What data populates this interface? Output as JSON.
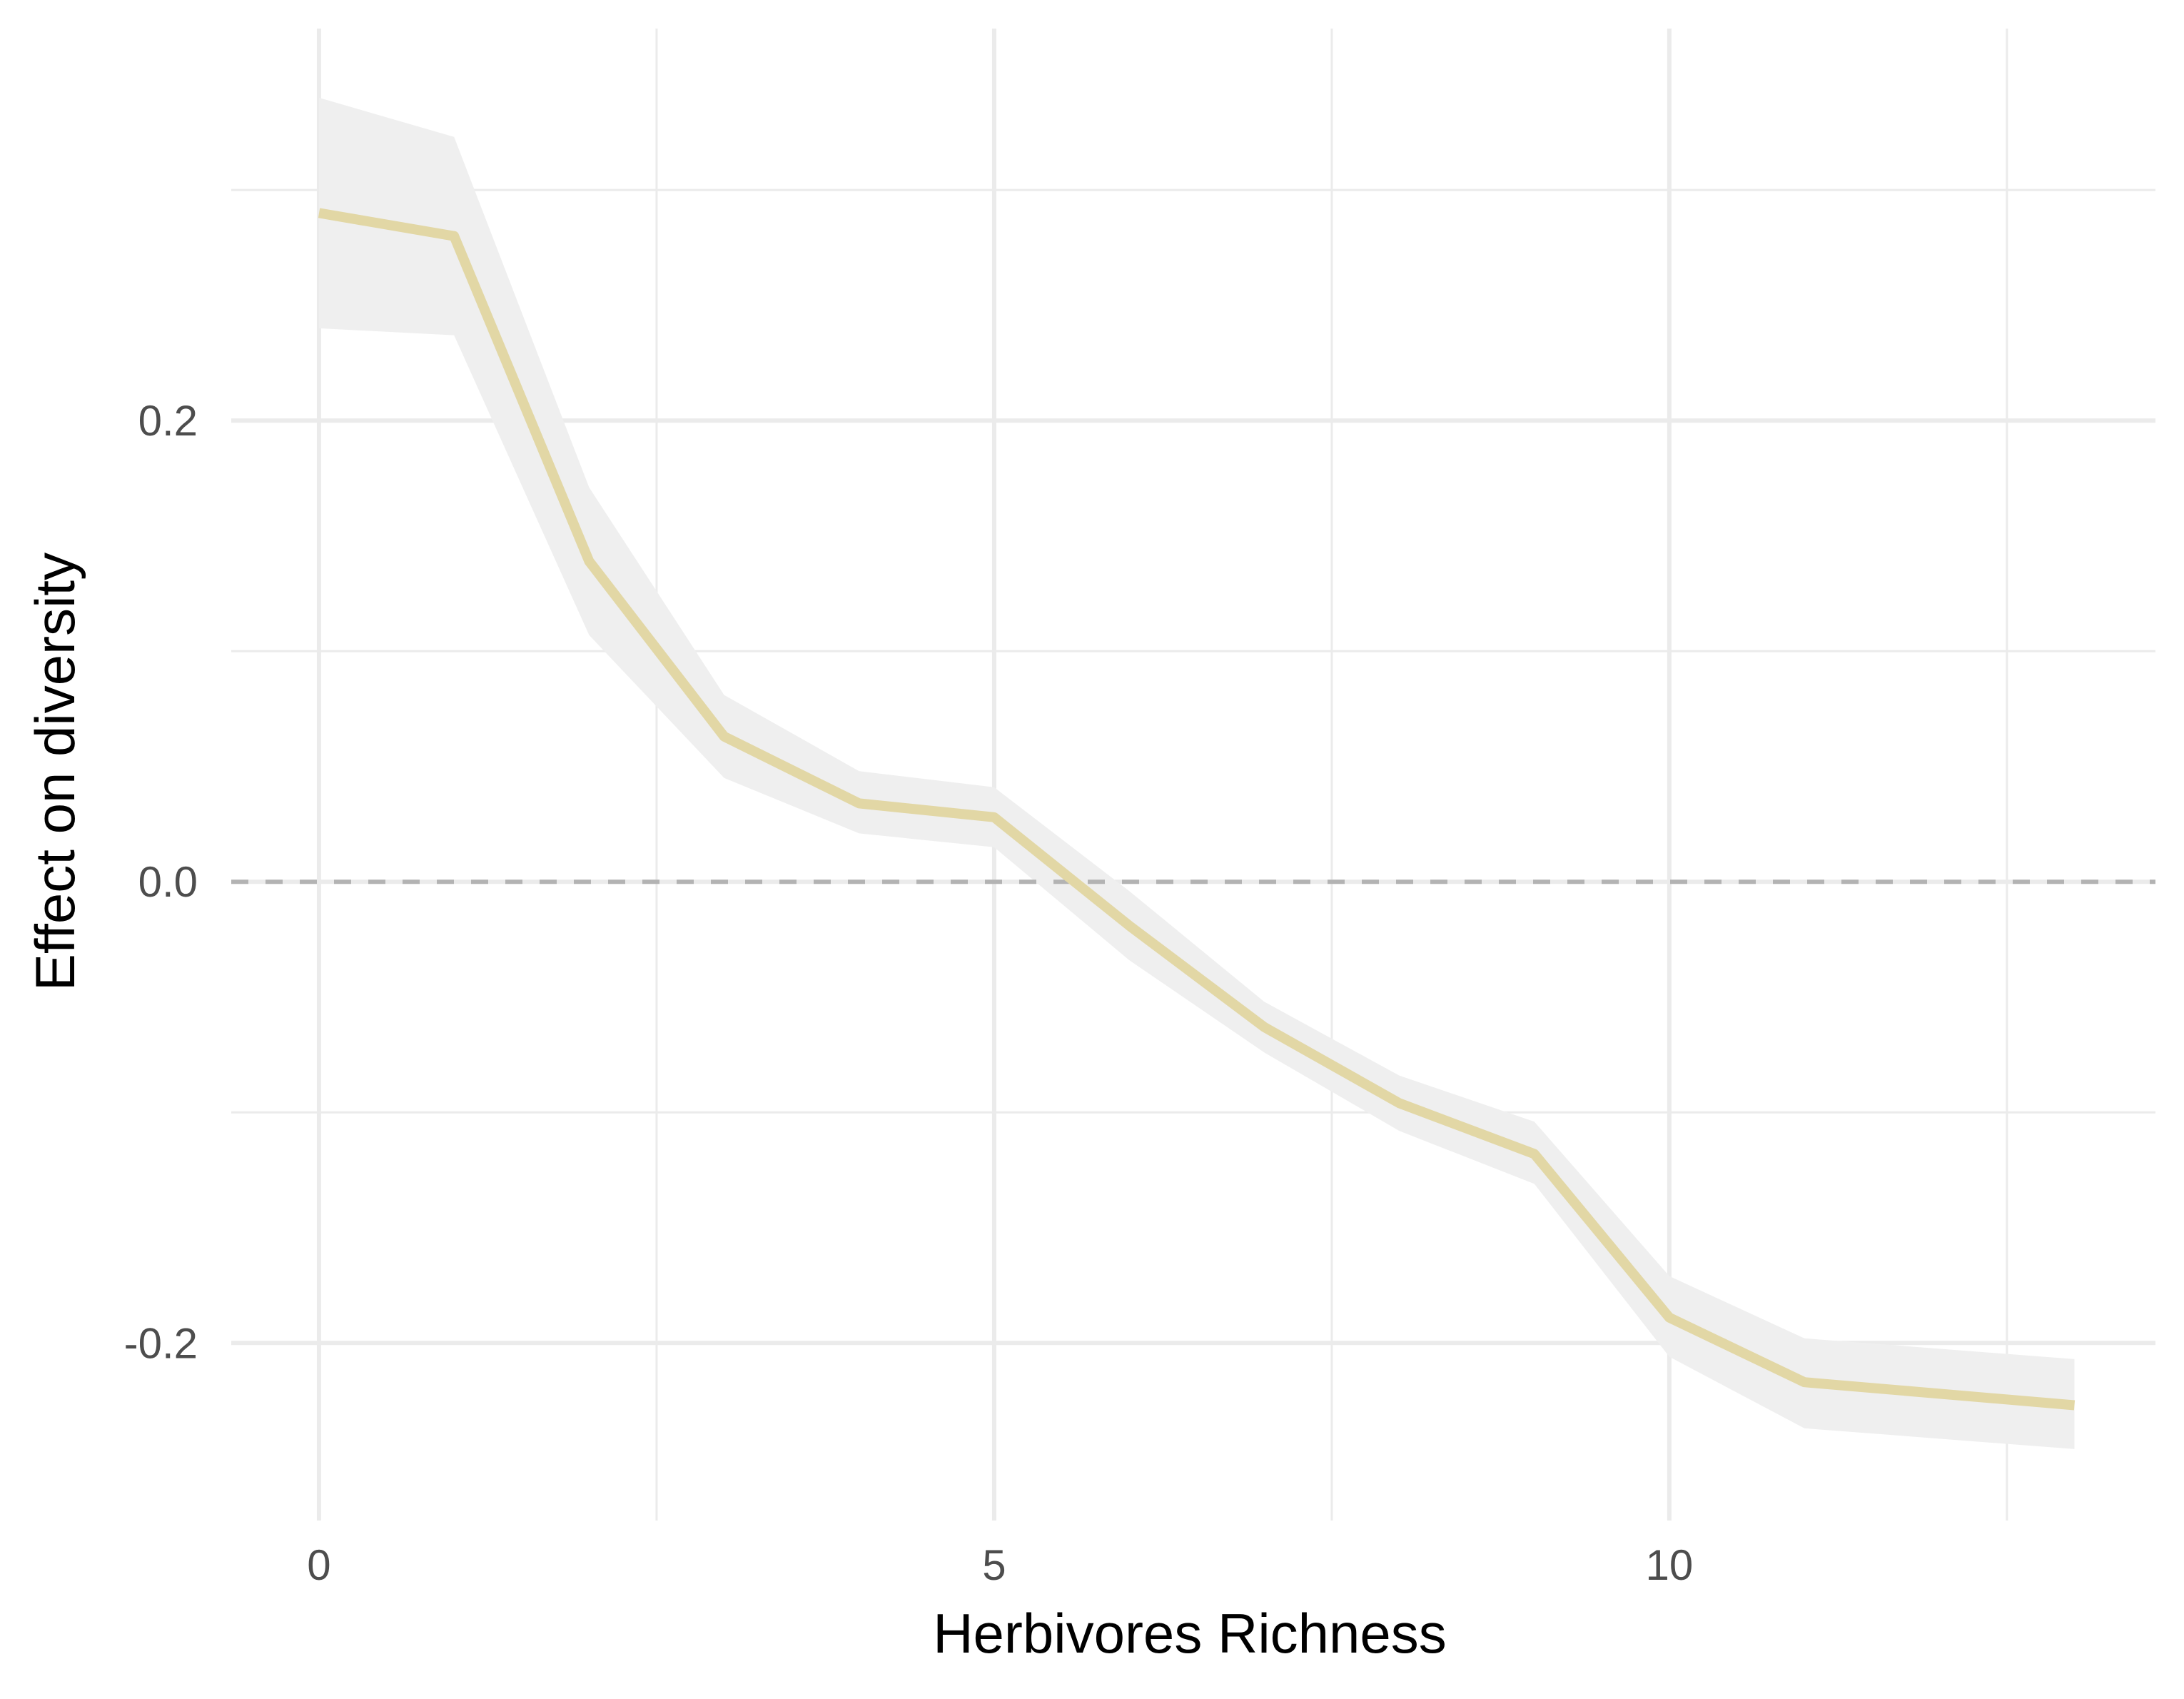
{
  "chart_data": {
    "type": "line",
    "title": "",
    "xlabel": "Herbivores Richness",
    "ylabel": "Effect on diversity",
    "xlim": [
      -0.65,
      13.6
    ],
    "ylim": [
      -0.277,
      0.37
    ],
    "x_ticks": [
      0,
      5,
      10
    ],
    "x_tick_labels": [
      "0",
      "5",
      "10"
    ],
    "y_ticks": [
      -0.2,
      0.0,
      0.2
    ],
    "y_tick_labels": [
      "-0.2",
      "0.0",
      "0.2"
    ],
    "x_minor_gridlines": [
      2.5,
      7.5,
      12.5
    ],
    "y_minor_gridlines": [
      -0.1,
      0.1,
      0.3
    ],
    "grid": true,
    "reference_line": {
      "y": 0,
      "style": "dashed",
      "color": "#b3b3b3"
    },
    "colors": {
      "line": "#e2d7a5",
      "ribbon": "#efefef",
      "grid": "#ebebeb"
    },
    "series": [
      {
        "x": [
          0,
          1,
          2,
          3,
          4,
          5,
          6,
          7,
          8,
          9,
          10,
          11,
          13
        ],
        "y": [
          0.29,
          0.28,
          0.139,
          0.063,
          0.034,
          0.028,
          -0.019,
          -0.063,
          -0.096,
          -0.118,
          -0.189,
          -0.217,
          -0.227
        ],
        "ymin": [
          0.24,
          0.237,
          0.107,
          0.045,
          0.021,
          0.015,
          -0.034,
          -0.074,
          -0.108,
          -0.131,
          -0.206,
          -0.237,
          -0.246
        ],
        "ymax": [
          0.34,
          0.323,
          0.171,
          0.081,
          0.048,
          0.041,
          -0.004,
          -0.052,
          -0.084,
          -0.104,
          -0.171,
          -0.198,
          -0.207
        ]
      }
    ]
  }
}
